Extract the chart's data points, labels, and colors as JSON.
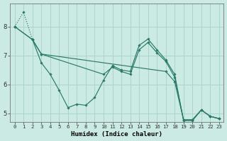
{
  "xlabel": "Humidex (Indice chaleur)",
  "bg_color": "#cceae4",
  "grid_color": "#aad4cc",
  "line_color": "#2a7a6a",
  "xlim": [
    -0.5,
    23.5
  ],
  "ylim": [
    4.7,
    8.8
  ],
  "xticks": [
    0,
    1,
    2,
    3,
    4,
    5,
    6,
    7,
    8,
    9,
    10,
    11,
    12,
    13,
    14,
    15,
    16,
    17,
    18,
    19,
    20,
    21,
    22,
    23
  ],
  "yticks": [
    5,
    6,
    7,
    8
  ],
  "series": [
    {
      "x": [
        0,
        1,
        2
      ],
      "y": [
        8.0,
        8.5,
        7.55
      ],
      "linestyle": "dotted"
    },
    {
      "x": [
        0,
        2,
        3,
        4,
        5,
        6,
        7,
        8,
        9,
        10,
        11,
        12,
        13,
        14,
        15,
        16,
        17,
        18,
        19,
        20,
        21,
        22,
        23
      ],
      "y": [
        8.0,
        7.55,
        6.75,
        6.35,
        5.8,
        5.2,
        5.32,
        5.28,
        5.55,
        6.15,
        6.65,
        6.5,
        6.45,
        7.35,
        7.57,
        7.2,
        6.85,
        6.35,
        4.75,
        4.75,
        5.12,
        4.9,
        4.82
      ],
      "linestyle": "-"
    },
    {
      "x": [
        2,
        3,
        10,
        11,
        12,
        13,
        14,
        15,
        16,
        17,
        18,
        19,
        20,
        21,
        22,
        23
      ],
      "y": [
        7.55,
        7.05,
        6.35,
        6.6,
        6.45,
        6.35,
        7.2,
        7.45,
        7.1,
        6.8,
        6.25,
        4.78,
        4.78,
        5.12,
        4.9,
        4.82
      ],
      "linestyle": "-"
    },
    {
      "x": [
        0,
        2,
        3,
        17,
        18,
        19,
        20,
        21,
        22,
        23
      ],
      "y": [
        8.0,
        7.55,
        7.05,
        6.45,
        6.1,
        4.78,
        4.78,
        5.12,
        4.9,
        4.82
      ],
      "linestyle": "-"
    }
  ]
}
